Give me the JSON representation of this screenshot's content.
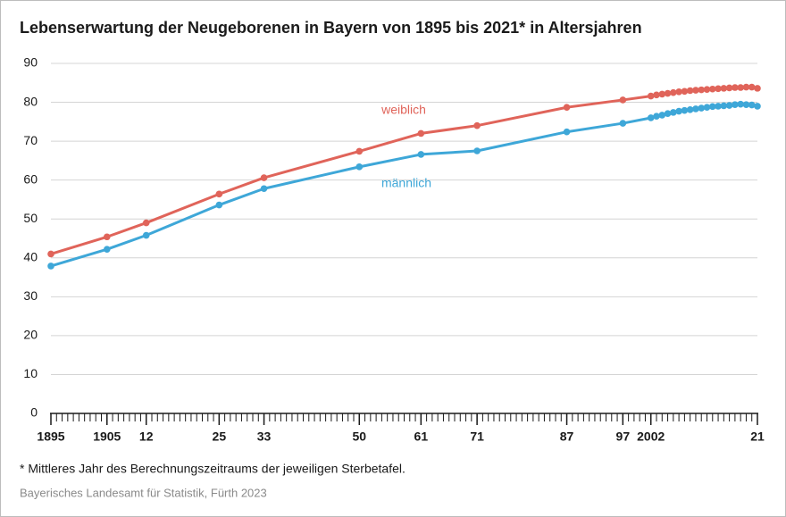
{
  "chart_data": {
    "type": "line",
    "title": "Lebenserwartung der Neugeborenen in Bayern von 1895 bis 2021* in Altersjahren",
    "x": [
      1895,
      1905,
      1912,
      1925,
      1933,
      1950,
      1961,
      1971,
      1987,
      1997,
      2002,
      2003,
      2004,
      2005,
      2006,
      2007,
      2008,
      2009,
      2010,
      2011,
      2012,
      2013,
      2014,
      2015,
      2016,
      2017,
      2018,
      2019,
      2020,
      2021
    ],
    "series": [
      {
        "name": "weiblich",
        "color": "#e0645a",
        "values": [
          41.0,
          45.4,
          49.0,
          56.4,
          60.6,
          67.4,
          72.0,
          74.0,
          78.7,
          80.6,
          81.6,
          81.9,
          82.1,
          82.3,
          82.5,
          82.7,
          82.8,
          83.0,
          83.1,
          83.2,
          83.3,
          83.4,
          83.5,
          83.6,
          83.7,
          83.8,
          83.8,
          83.9,
          83.9,
          83.6
        ]
      },
      {
        "name": "männlich",
        "color": "#3ea7d8",
        "values": [
          37.9,
          42.2,
          45.8,
          53.6,
          57.8,
          63.4,
          66.6,
          67.5,
          72.4,
          74.6,
          76.0,
          76.4,
          76.7,
          77.1,
          77.4,
          77.7,
          77.9,
          78.1,
          78.3,
          78.5,
          78.7,
          78.9,
          79.0,
          79.1,
          79.2,
          79.4,
          79.5,
          79.4,
          79.3,
          79.0
        ]
      }
    ],
    "xlim": [
      1895,
      2021
    ],
    "xticks": [
      1895,
      1905,
      {
        "value": 1912,
        "label": "12"
      },
      {
        "value": 1925,
        "label": "25"
      },
      {
        "value": 1933,
        "label": "33"
      },
      {
        "value": 1950,
        "label": "50"
      },
      {
        "value": 1961,
        "label": "61"
      },
      {
        "value": 1971,
        "label": "71"
      },
      {
        "value": 1987,
        "label": "87"
      },
      {
        "value": 1997,
        "label": "97"
      },
      2002,
      {
        "value": 2021,
        "label": "21"
      }
    ],
    "ylim": [
      0,
      90
    ],
    "yticks": [
      0,
      10,
      20,
      30,
      40,
      50,
      60,
      70,
      80,
      90
    ],
    "grid": true,
    "footnote": "* Mittleres Jahr des Berechnungszeitraums der jeweiligen Sterbetafel.",
    "source": "Bayerisches Landesamt für Statistik, Fürth 2023"
  }
}
